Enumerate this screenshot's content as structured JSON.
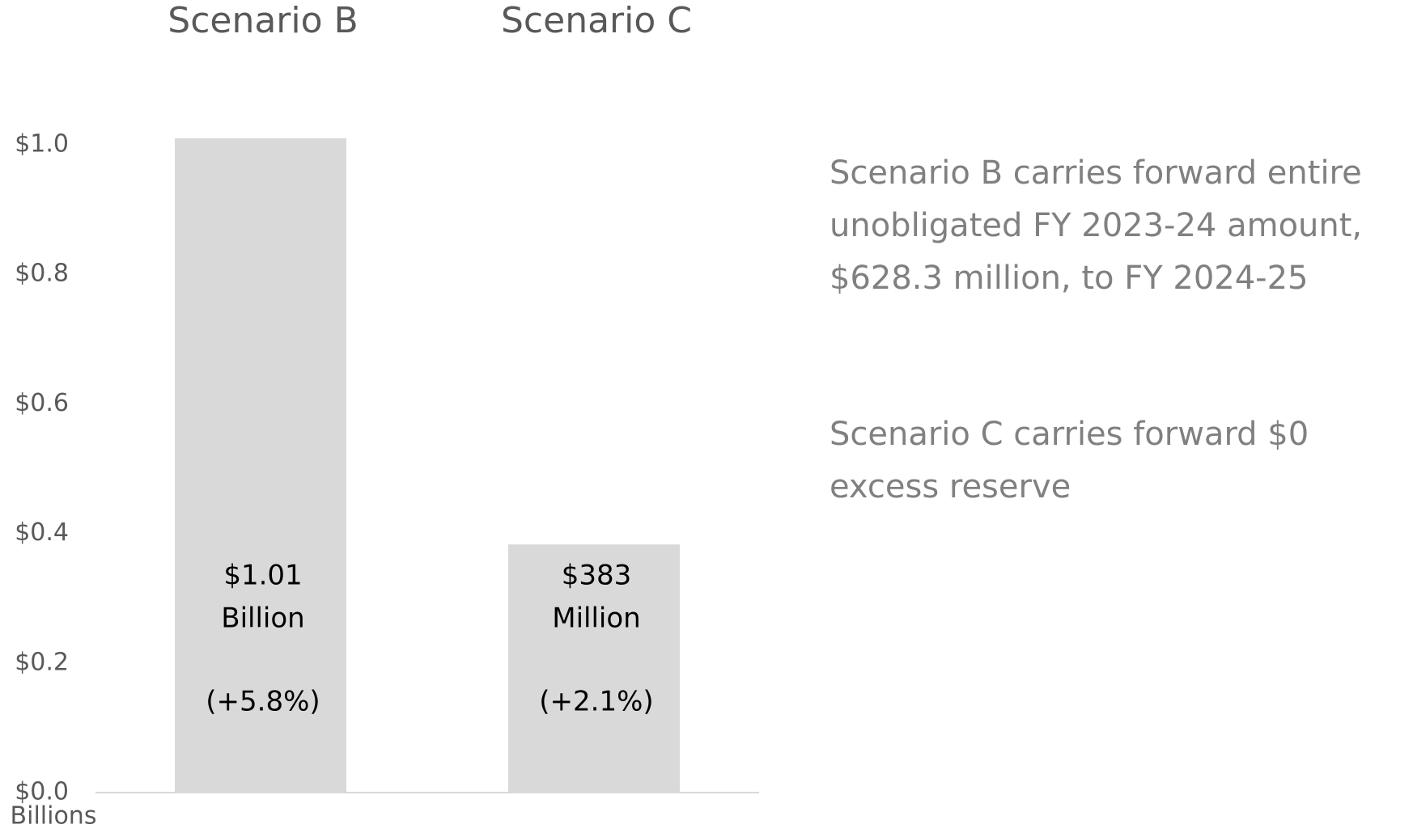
{
  "chart_data": {
    "type": "bar",
    "categories": [
      "Scenario B",
      "Scenario C"
    ],
    "values": [
      1.01,
      0.383
    ],
    "value_labels": [
      [
        "$1.01",
        "Billion"
      ],
      [
        "$383",
        "Million"
      ]
    ],
    "change_labels": [
      "(+5.8%)",
      "(+2.1%)"
    ],
    "color": "#d9d9d9",
    "ylim": [
      0,
      1.0
    ],
    "yticks": [
      {
        "value": 0,
        "label": "$0.0"
      },
      {
        "value": 0.2,
        "label": "$0.2"
      },
      {
        "value": 0.4,
        "label": "$0.4"
      },
      {
        "value": 0.6,
        "label": "$0.6"
      },
      {
        "value": 0.8,
        "label": "$0.8"
      },
      {
        "value": 1.0,
        "label": "$1.0"
      }
    ],
    "y_axis_label": "Billions",
    "grid": false,
    "annotations": [
      [
        "Scenario B carries forward entire",
        "unobligated FY 2023-24 amount,",
        "$628.3 million, to FY 2024-25"
      ],
      [
        "Scenario C carries forward $0",
        "excess reserve"
      ]
    ]
  }
}
